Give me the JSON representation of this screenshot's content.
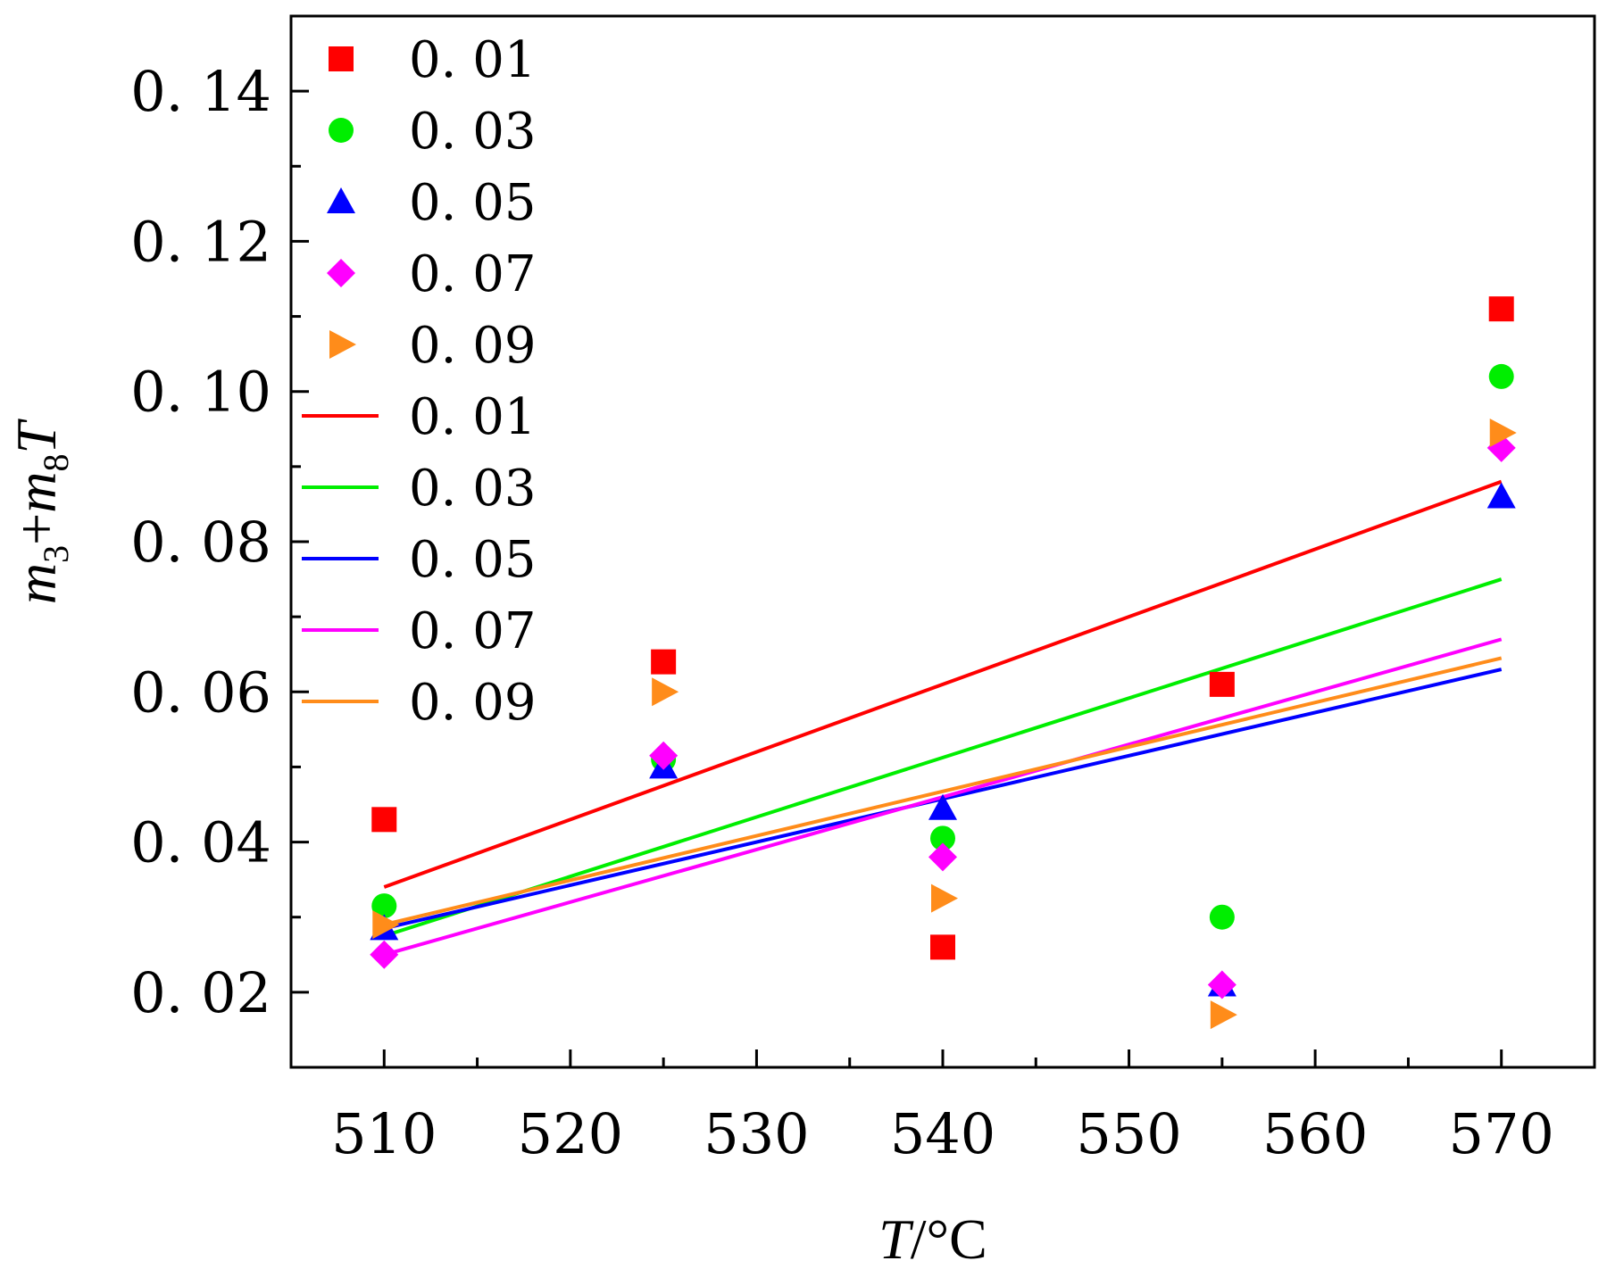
{
  "chart_data": {
    "type": "scatter",
    "title": "",
    "xlabel": {
      "var": "T",
      "unit": "/°C"
    },
    "ylabel": {
      "m": "m",
      "sub3": "3",
      "plus": "+",
      "sub8": "8",
      "T": "T"
    },
    "xlim": [
      505,
      575
    ],
    "ylim": [
      0.01,
      0.15
    ],
    "x_ticks": [
      {
        "value": 510,
        "label": "510"
      },
      {
        "value": 520,
        "label": "520"
      },
      {
        "value": 530,
        "label": "530"
      },
      {
        "value": 540,
        "label": "540"
      },
      {
        "value": 550,
        "label": "550"
      },
      {
        "value": 560,
        "label": "560"
      },
      {
        "value": 570,
        "label": "570"
      }
    ],
    "y_ticks": [
      {
        "value": 0.02,
        "label": "0. 02"
      },
      {
        "value": 0.04,
        "label": "0. 04"
      },
      {
        "value": 0.06,
        "label": "0. 06"
      },
      {
        "value": 0.08,
        "label": "0. 08"
      },
      {
        "value": 0.1,
        "label": "0. 10"
      },
      {
        "value": 0.12,
        "label": "0. 12"
      },
      {
        "value": 0.14,
        "label": "0. 14"
      }
    ],
    "legend_position": "top-left",
    "x": [
      510,
      525,
      540,
      555,
      570
    ],
    "scatter_series": [
      {
        "name": "0. 01",
        "marker": "square",
        "color": "#ff0000",
        "values": [
          0.043,
          0.064,
          0.026,
          0.061,
          0.111
        ]
      },
      {
        "name": "0. 03",
        "marker": "circle",
        "color": "#00ee00",
        "values": [
          0.0315,
          0.051,
          0.0405,
          0.03,
          0.102
        ]
      },
      {
        "name": "0. 05",
        "marker": "triangle-up",
        "color": "#0000ff",
        "values": [
          0.0285,
          0.05,
          0.0445,
          0.021,
          0.086
        ]
      },
      {
        "name": "0. 07",
        "marker": "diamond",
        "color": "#ff00ff",
        "values": [
          0.025,
          0.0515,
          0.038,
          0.021,
          0.0925
        ]
      },
      {
        "name": "0. 09",
        "marker": "triangle-right",
        "color": "#ff8c1a",
        "values": [
          0.029,
          0.06,
          0.0325,
          0.017,
          0.0945
        ]
      }
    ],
    "fit_lines": [
      {
        "name": "0. 01",
        "color": "#ff0000",
        "x": [
          510,
          570
        ],
        "y": [
          0.034,
          0.088
        ]
      },
      {
        "name": "0. 03",
        "color": "#00ee00",
        "x": [
          510,
          570
        ],
        "y": [
          0.0275,
          0.075
        ]
      },
      {
        "name": "0. 05",
        "color": "#0000ff",
        "x": [
          510,
          570
        ],
        "y": [
          0.0285,
          0.063
        ]
      },
      {
        "name": "0. 07",
        "color": "#ff00ff",
        "x": [
          510,
          570
        ],
        "y": [
          0.025,
          0.067
        ]
      },
      {
        "name": "0. 09",
        "color": "#ff8c1a",
        "x": [
          510,
          570
        ],
        "y": [
          0.029,
          0.0645
        ]
      }
    ]
  }
}
